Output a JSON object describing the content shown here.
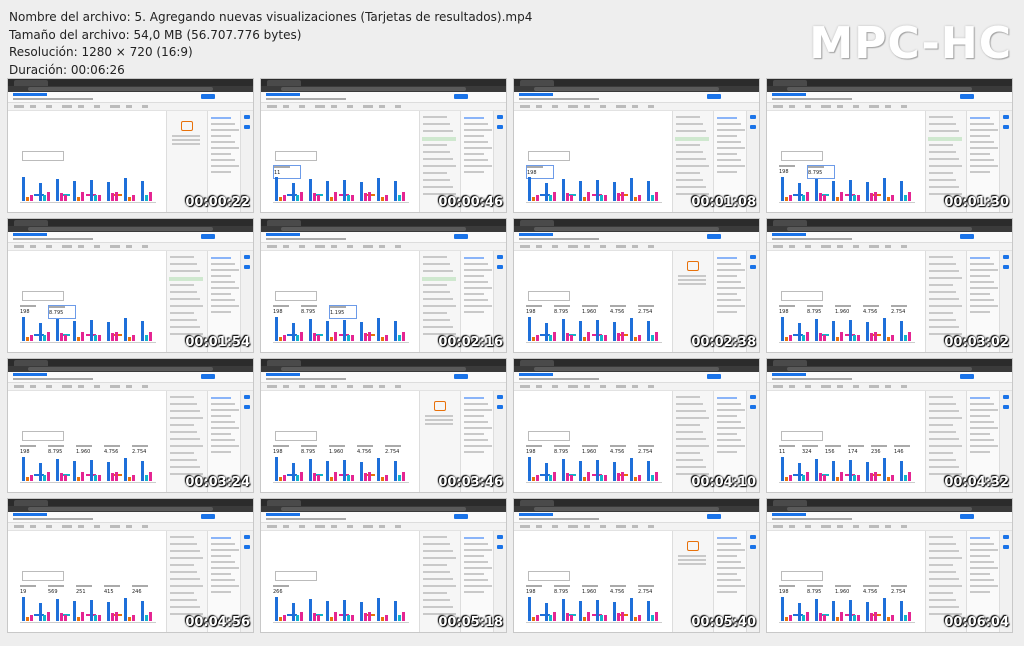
{
  "info": {
    "file_name": "Nombre del archivo: 5. Agregando nuevas visualizaciones (Tarjetas de resultados).mp4",
    "file_size": "Tamaño del archivo: 54,0 MB (56.707.776 bytes)",
    "resolution": "Resolución: 1280 × 720 (16:9)",
    "duration": "Duración: 00:06:26"
  },
  "logo": "MPC-HC",
  "thumbnails": [
    {
      "time": "00:00:22",
      "cards": [],
      "panel": "empty"
    },
    {
      "time": "00:00:46",
      "cards": [
        "11"
      ],
      "panel": "list"
    },
    {
      "time": "00:01:08",
      "cards": [
        "198"
      ],
      "panel": "list"
    },
    {
      "time": "00:01:30",
      "cards": [
        "198",
        "8.795"
      ],
      "panel": "list"
    },
    {
      "time": "00:01:54",
      "cards": [
        "198",
        "8.795"
      ],
      "panel": "list"
    },
    {
      "time": "00:02:16",
      "cards": [
        "198",
        "8.795",
        "1.195"
      ],
      "panel": "list"
    },
    {
      "time": "00:02:38",
      "cards": [
        "198",
        "8.795",
        "1.960",
        "4.756",
        "2.754"
      ],
      "panel": "empty"
    },
    {
      "time": "00:03:02",
      "cards": [
        "198",
        "8.795",
        "1.960",
        "4.756",
        "2.754"
      ],
      "panel": "style"
    },
    {
      "time": "00:03:24",
      "cards": [
        "198",
        "8.795",
        "1.960",
        "4.756",
        "2.754"
      ],
      "panel": "style"
    },
    {
      "time": "00:03:46",
      "cards": [
        "198",
        "8.795",
        "1.960",
        "4.756",
        "2.754"
      ],
      "panel": "empty"
    },
    {
      "time": "00:04:10",
      "cards": [
        "198",
        "8.795",
        "1.960",
        "4.756",
        "2.754"
      ],
      "panel": "style"
    },
    {
      "time": "00:04:32",
      "cards": [
        "11",
        "324",
        "156",
        "174",
        "236",
        "146"
      ],
      "panel": "props"
    },
    {
      "time": "00:04:56",
      "cards": [
        "19",
        "569",
        "251",
        "415",
        "246"
      ],
      "panel": "props"
    },
    {
      "time": "00:05:18",
      "cards": [
        "266"
      ],
      "panel": "calendar"
    },
    {
      "time": "00:05:40",
      "cards": [
        "198",
        "8.795",
        "1.960",
        "4.756",
        "2.754"
      ],
      "panel": "empty"
    },
    {
      "time": "00:06:04",
      "cards": [
        "198",
        "8.795",
        "1.960",
        "4.756",
        "2.754"
      ],
      "panel": "props"
    }
  ],
  "colors": {
    "bar_blue": "#1e6fd9",
    "bar_cyan": "#12b5cb",
    "bar_orange": "#e8710a",
    "bar_magenta": "#e52592",
    "bar_purple": "#9334e6",
    "accent": "#1a73e8"
  }
}
